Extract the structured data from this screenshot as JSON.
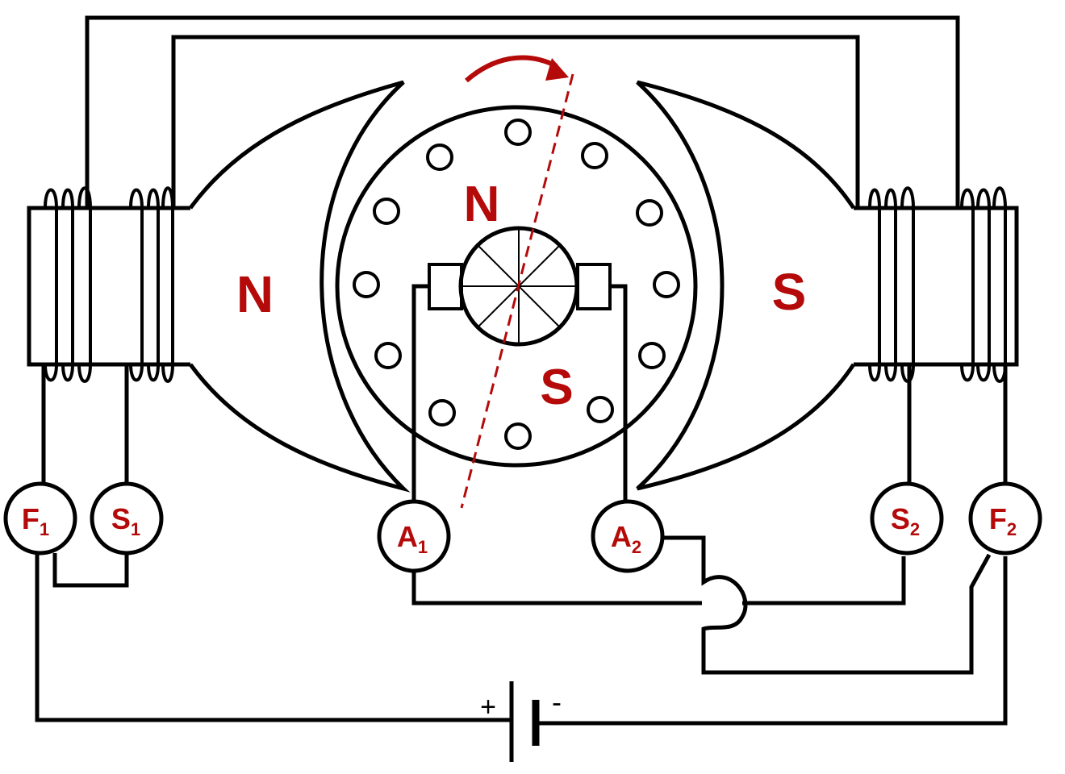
{
  "colors": {
    "line": "#000000",
    "accent": "#b50a0a",
    "background": "#ffffff"
  },
  "poles": {
    "stator_left": "N",
    "stator_right": "S",
    "armature_top": "N",
    "armature_bottom": "S"
  },
  "terminals": {
    "F1": {
      "letter": "F",
      "sub": "1"
    },
    "S1": {
      "letter": "S",
      "sub": "1"
    },
    "A1": {
      "letter": "A",
      "sub": "1"
    },
    "A2": {
      "letter": "A",
      "sub": "2"
    },
    "S2": {
      "letter": "S",
      "sub": "2"
    },
    "F2": {
      "letter": "F",
      "sub": "2"
    }
  },
  "battery": {
    "positive": "+",
    "negative": "-"
  },
  "icons": {
    "rotation": "rotation-arrow-icon",
    "battery": "battery-icon"
  }
}
